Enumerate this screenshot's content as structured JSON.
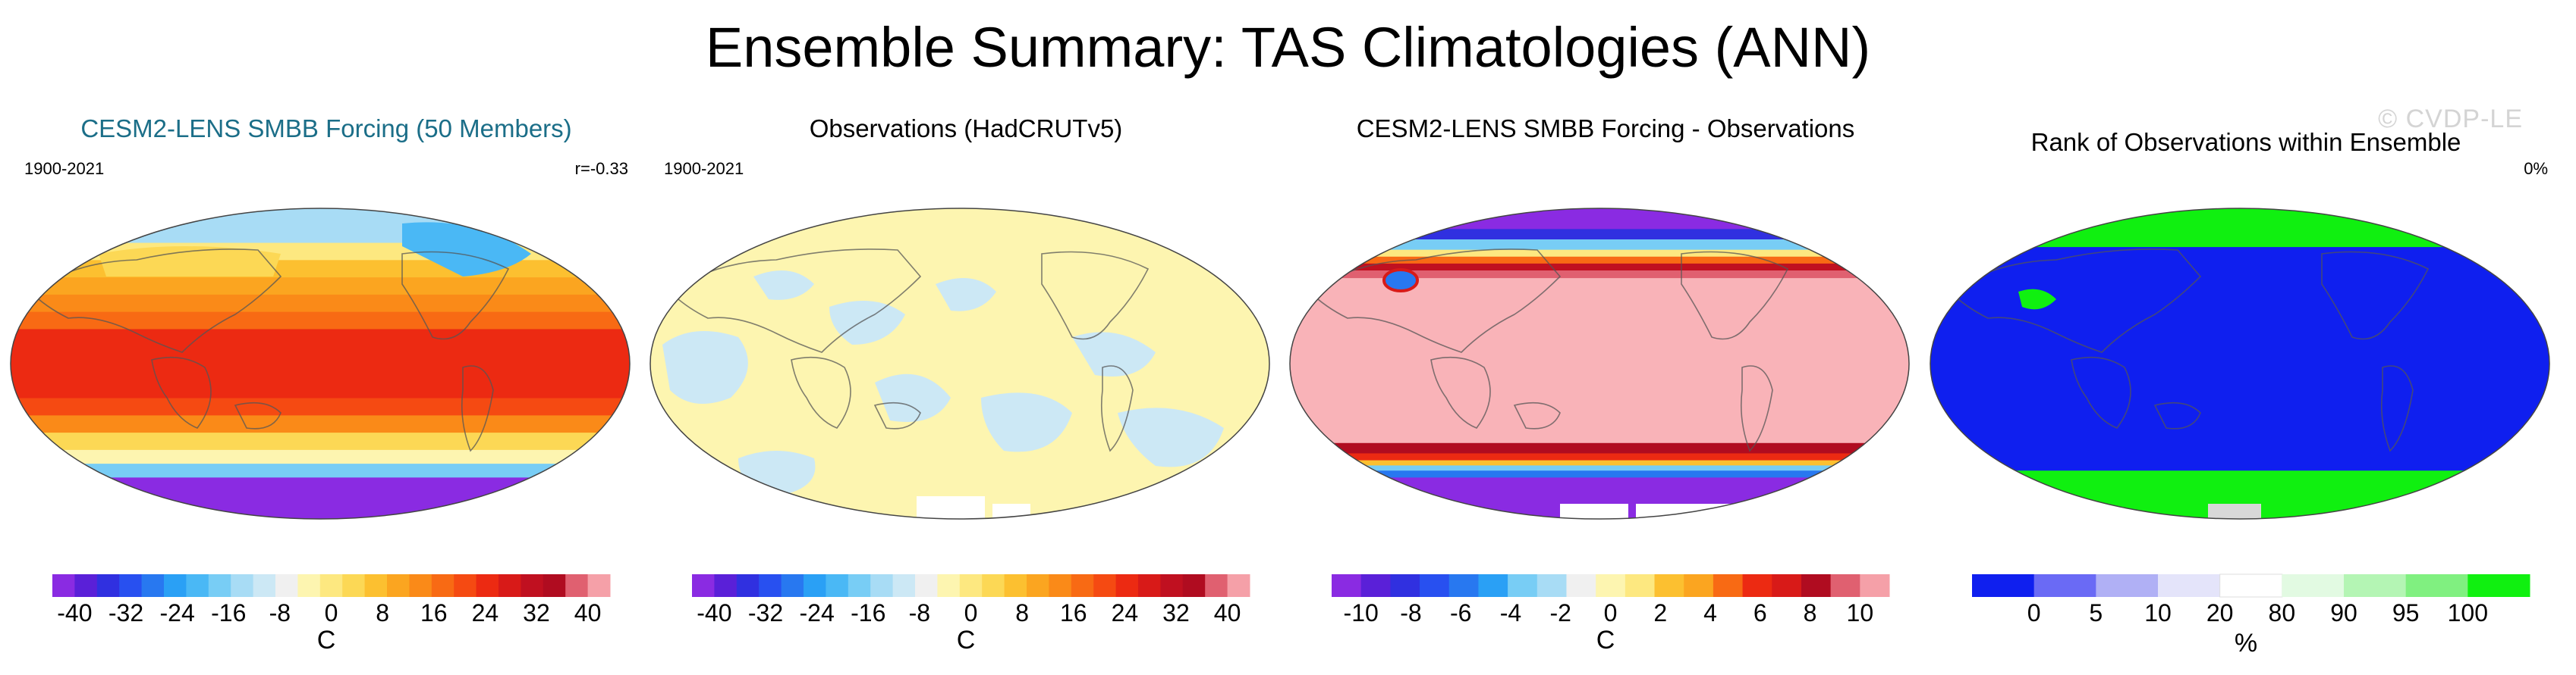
{
  "title": "Ensemble Summary: TAS Climatologies (ANN)",
  "watermark": "© CVDP-LE",
  "chart_data": [
    {
      "type": "heatmap",
      "title": "CESM2-LENS SMBB Forcing (50 Members)",
      "period": "1900-2021",
      "stat": "r=-0.33",
      "colorbar": {
        "title": "C",
        "tick_labels": [
          "-40",
          "-32",
          "-24",
          "-16",
          "-8",
          "0",
          "8",
          "16",
          "24",
          "32",
          "40"
        ],
        "range": [
          -40,
          40
        ],
        "colors": [
          "#8a2be2",
          "#5a20d8",
          "#3030e0",
          "#2850f0",
          "#2878f0",
          "#2aa0f5",
          "#4ab8f5",
          "#78cdf5",
          "#a8dcf5",
          "#cce8f5",
          "#f0f0f0",
          "#fdf5b0",
          "#fde880",
          "#fcd855",
          "#fcc030",
          "#fba520",
          "#fa8a18",
          "#f86a14",
          "#f54a12",
          "#ec2a12",
          "#d81a18",
          "#c01020",
          "#b00c20",
          "#e06070",
          "#f5a0a8"
        ]
      }
    },
    {
      "type": "heatmap",
      "title": "Observations (HadCRUTv5)",
      "period": "1900-2021",
      "colorbar": {
        "title": "C",
        "tick_labels": [
          "-40",
          "-32",
          "-24",
          "-16",
          "-8",
          "0",
          "8",
          "16",
          "24",
          "32",
          "40"
        ],
        "range": [
          -40,
          40
        ],
        "colors": [
          "#8a2be2",
          "#5a20d8",
          "#3030e0",
          "#2850f0",
          "#2878f0",
          "#2aa0f5",
          "#4ab8f5",
          "#78cdf5",
          "#a8dcf5",
          "#cce8f5",
          "#f0f0f0",
          "#fdf5b0",
          "#fde880",
          "#fcd855",
          "#fcc030",
          "#fba520",
          "#fa8a18",
          "#f86a14",
          "#f54a12",
          "#ec2a12",
          "#d81a18",
          "#c01020",
          "#b00c20",
          "#e06070",
          "#f5a0a8"
        ]
      }
    },
    {
      "type": "heatmap",
      "title": "CESM2-LENS SMBB Forcing - Observations",
      "colorbar": {
        "title": "C",
        "tick_labels": [
          "-10",
          "-8",
          "-6",
          "-4",
          "-2",
          "0",
          "2",
          "4",
          "6",
          "8",
          "10"
        ],
        "range": [
          -10,
          10
        ],
        "colors": [
          "#8a2be2",
          "#5a20d8",
          "#3030e0",
          "#2850f0",
          "#2878f0",
          "#2aa0f5",
          "#78cdf5",
          "#a8dcf5",
          "#f0f0f0",
          "#fdf5b0",
          "#fde880",
          "#fcc030",
          "#fba520",
          "#f86a14",
          "#ec2a12",
          "#d81a18",
          "#b00c20",
          "#e06070",
          "#f5a0a8"
        ]
      }
    },
    {
      "type": "heatmap",
      "title": "Rank of Observations within Ensemble",
      "stat": "0%",
      "colorbar": {
        "title": "%",
        "tick_labels": [
          "0",
          "5",
          "10",
          "20",
          "80",
          "90",
          "95",
          "100"
        ],
        "bins": [
          0,
          5,
          10,
          20,
          80,
          90,
          95,
          100
        ],
        "colors": [
          "#0f1fef",
          "#6a6af5",
          "#b0b0f5",
          "#e4e4fa",
          "#ffffff",
          "#e2fae2",
          "#b4f5b4",
          "#80f080",
          "#10f010"
        ]
      }
    }
  ]
}
